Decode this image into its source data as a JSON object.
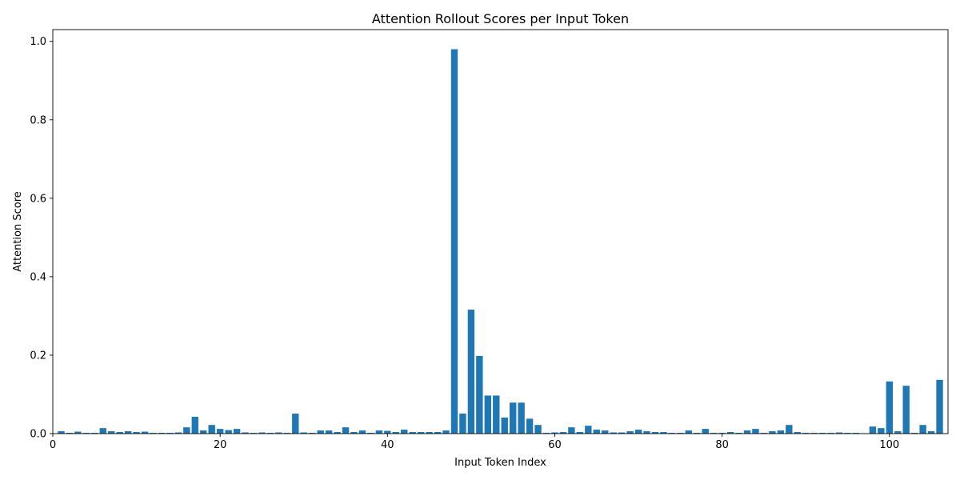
{
  "chart_data": {
    "type": "bar",
    "title": "Attention Rollout Scores per Input Token",
    "xlabel": "Input Token Index",
    "ylabel": "Attention Score",
    "xlim": [
      0,
      107
    ],
    "ylim": [
      0,
      1.03
    ],
    "xticks": [
      0,
      20,
      40,
      60,
      80,
      100
    ],
    "yticks": [
      0.0,
      0.2,
      0.4,
      0.6,
      0.8,
      1.0
    ],
    "ytick_labels": [
      "0.0",
      "0.2",
      "0.4",
      "0.6",
      "0.8",
      "1.0"
    ],
    "grid": false,
    "color": "#1f77b4",
    "x": [
      1,
      2,
      3,
      4,
      5,
      6,
      7,
      8,
      9,
      10,
      11,
      12,
      13,
      14,
      15,
      16,
      17,
      18,
      19,
      20,
      21,
      22,
      23,
      24,
      25,
      26,
      27,
      28,
      29,
      30,
      31,
      32,
      33,
      34,
      35,
      36,
      37,
      38,
      39,
      40,
      41,
      42,
      43,
      44,
      45,
      46,
      47,
      48,
      49,
      50,
      51,
      52,
      53,
      54,
      55,
      56,
      57,
      58,
      59,
      60,
      61,
      62,
      63,
      64,
      65,
      66,
      67,
      68,
      69,
      70,
      71,
      72,
      73,
      74,
      75,
      76,
      77,
      78,
      79,
      80,
      81,
      82,
      83,
      84,
      85,
      86,
      87,
      88,
      89,
      90,
      91,
      92,
      93,
      94,
      95,
      96,
      97,
      98,
      99,
      100,
      101,
      102,
      103,
      104,
      105,
      106
    ],
    "values": [
      0.006,
      0.002,
      0.005,
      0.002,
      0.002,
      0.014,
      0.006,
      0.004,
      0.006,
      0.004,
      0.005,
      0.002,
      0.002,
      0.002,
      0.003,
      0.016,
      0.043,
      0.008,
      0.022,
      0.012,
      0.009,
      0.012,
      0.003,
      0.002,
      0.003,
      0.002,
      0.003,
      0.002,
      0.051,
      0.003,
      0.002,
      0.008,
      0.008,
      0.004,
      0.016,
      0.004,
      0.008,
      0.002,
      0.008,
      0.007,
      0.004,
      0.01,
      0.004,
      0.004,
      0.004,
      0.004,
      0.008,
      0.98,
      0.051,
      0.316,
      0.198,
      0.097,
      0.097,
      0.041,
      0.079,
      0.079,
      0.038,
      0.022,
      0.002,
      0.003,
      0.004,
      0.016,
      0.004,
      0.02,
      0.01,
      0.008,
      0.003,
      0.003,
      0.006,
      0.01,
      0.006,
      0.004,
      0.004,
      0.002,
      0.002,
      0.008,
      0.002,
      0.012,
      0.002,
      0.002,
      0.004,
      0.002,
      0.008,
      0.012,
      0.002,
      0.006,
      0.008,
      0.022,
      0.004,
      0.002,
      0.002,
      0.002,
      0.002,
      0.003,
      0.002,
      0.002,
      0.001,
      0.018,
      0.014,
      0.133,
      0.006,
      0.122,
      0.002,
      0.022,
      0.006,
      0.137
    ]
  }
}
